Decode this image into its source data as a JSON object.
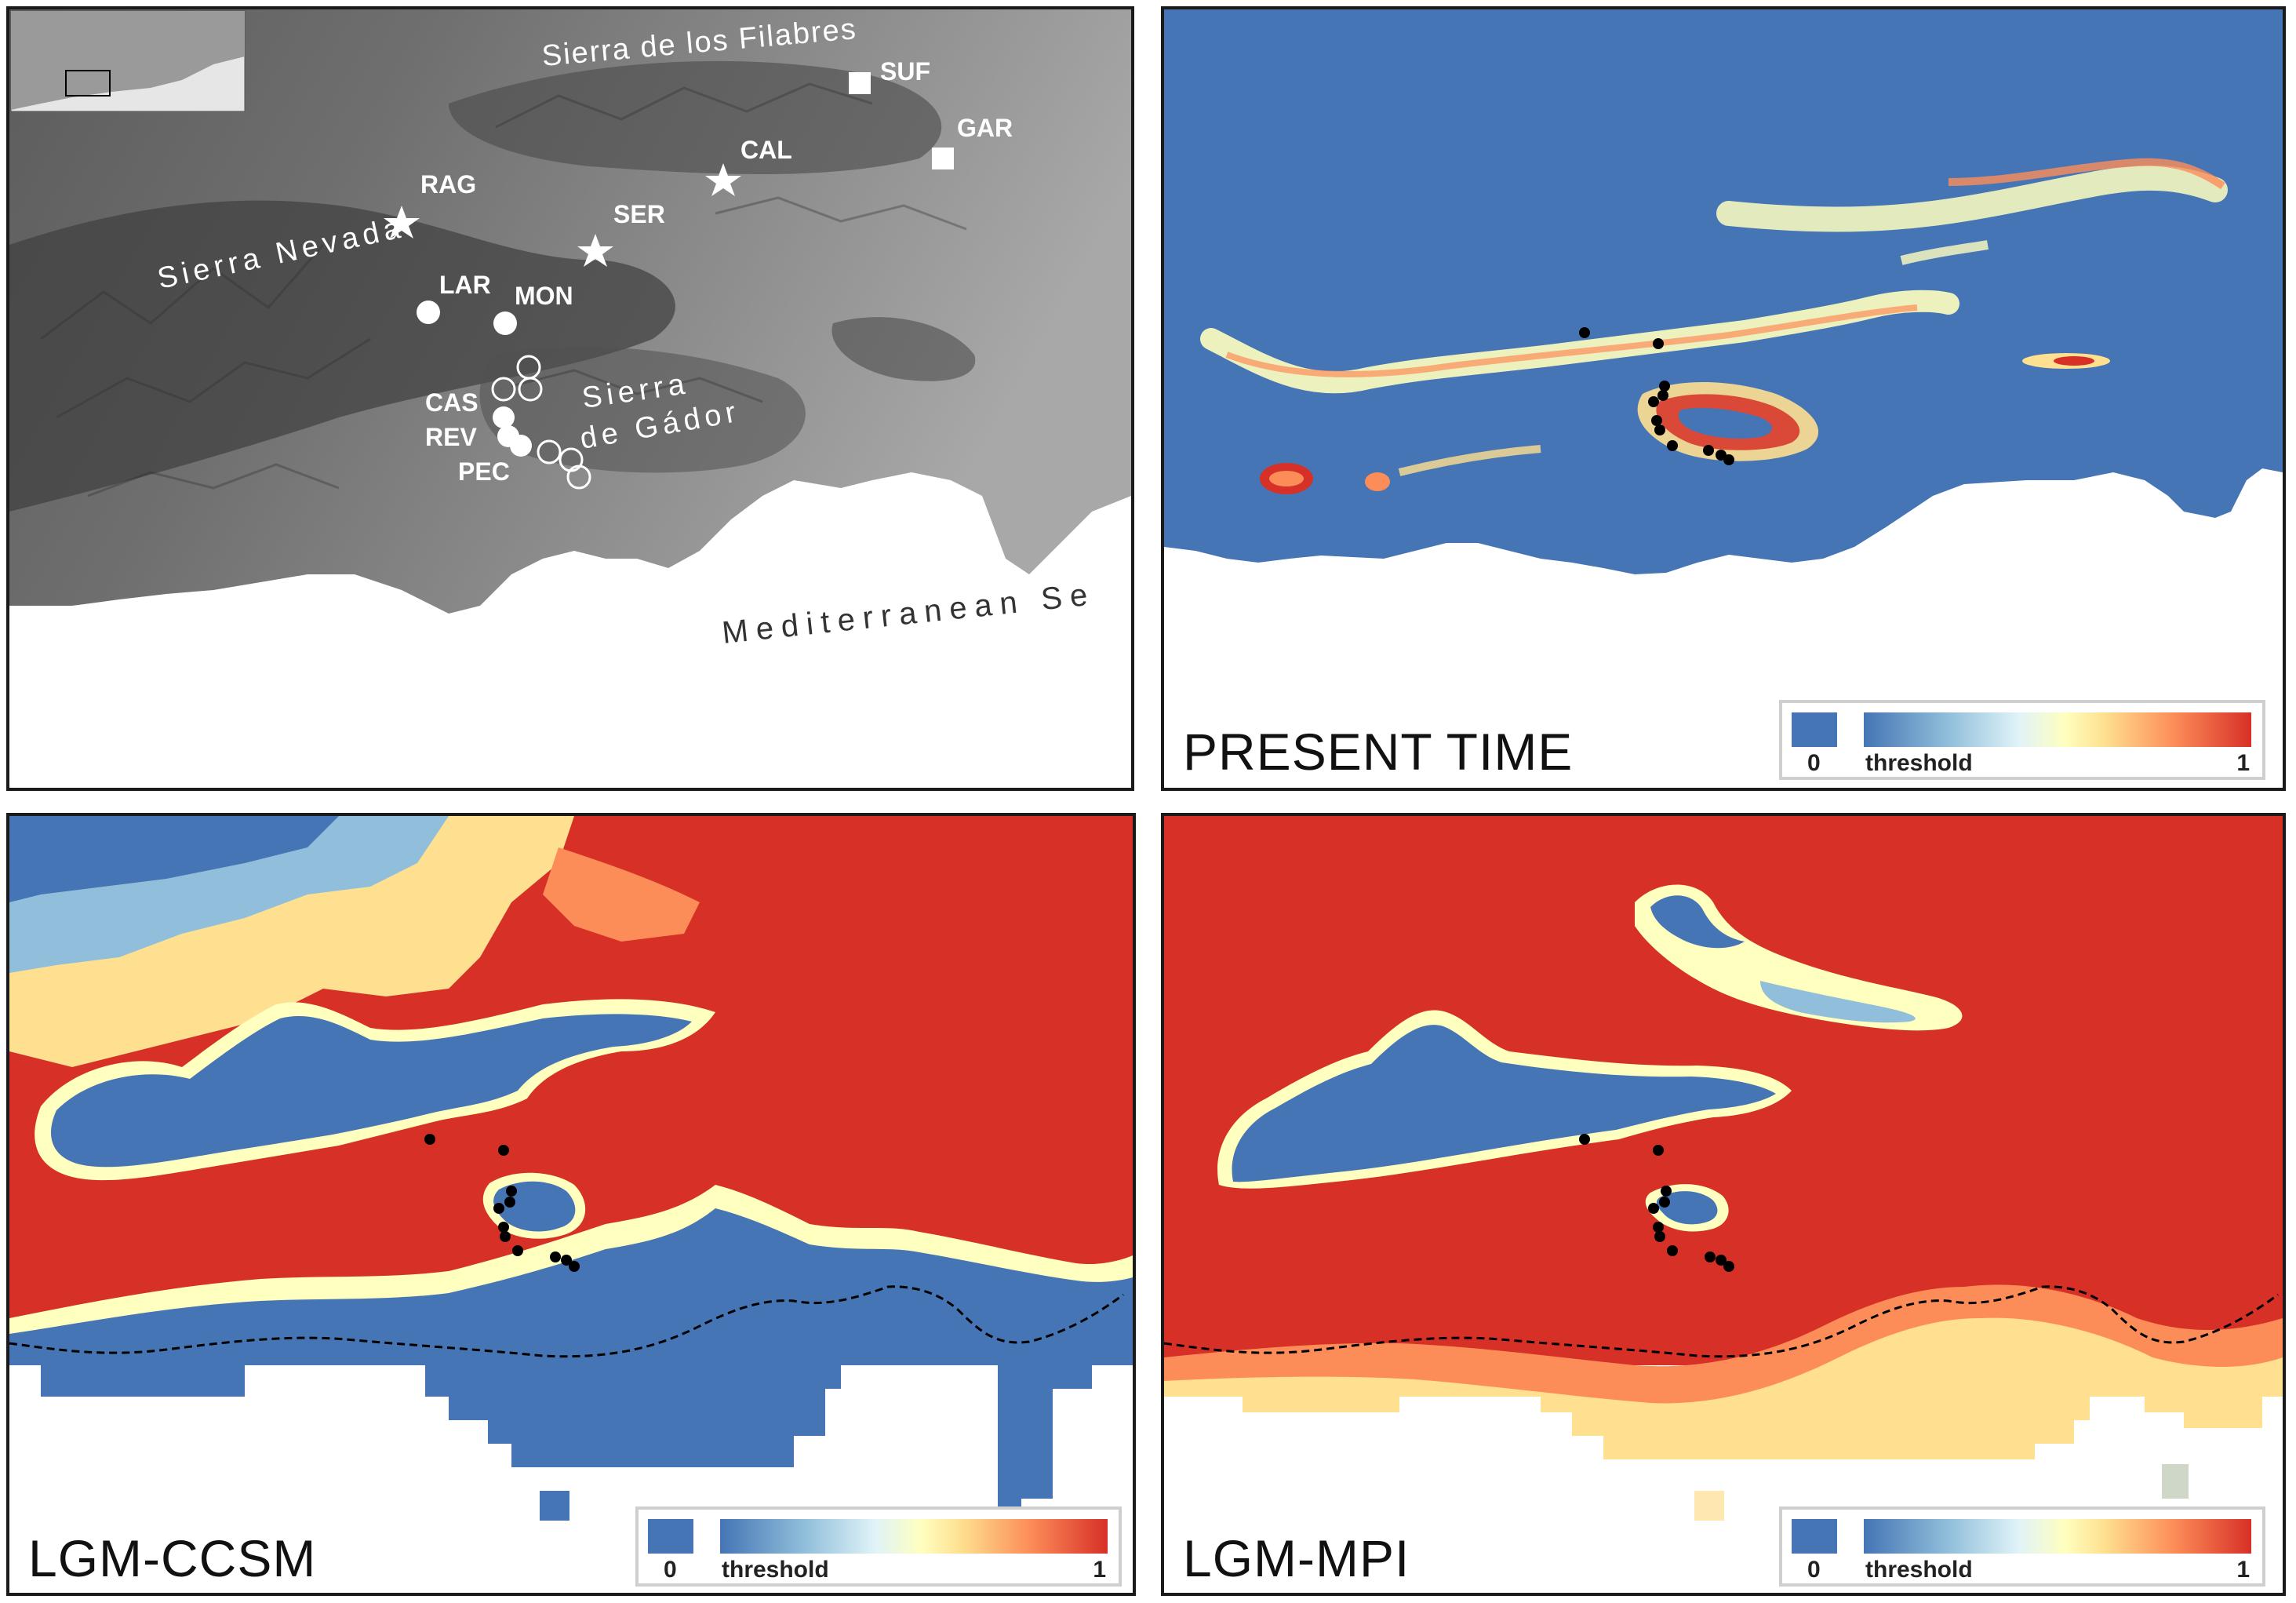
{
  "terrain_panel": {
    "place_labels": {
      "filabres": "Sierra de los Filabres",
      "nevada": "Sierra Nevada",
      "gador_1": "Sierra",
      "gador_2": "de Gádor",
      "sea": "Mediterranean Se"
    },
    "sites": {
      "SUF": "SUF",
      "GAR": "GAR",
      "CAL": "CAL",
      "RAG": "RAG",
      "SER": "SER",
      "LAR": "LAR",
      "MON": "MON",
      "CAS": "CAS",
      "REV": "REV",
      "PEC": "PEC"
    }
  },
  "panels": {
    "present": {
      "title": "PRESENT TIME"
    },
    "ccsm": {
      "title": "LGM-CCSM"
    },
    "mpi": {
      "title": "LGM-MPI"
    }
  },
  "legend": {
    "min_label": "0",
    "threshold_label": "threshold",
    "max_label": "1"
  },
  "colors": {
    "low": "#4575b4",
    "mid": "#ffffbf",
    "high": "#d73027",
    "border": "#1a1a1a"
  }
}
